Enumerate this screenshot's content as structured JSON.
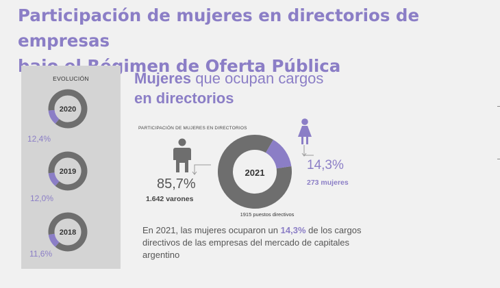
{
  "title": {
    "line1": "Participación de mujeres en directorios de empresas",
    "line2": "bajo el Régimen de Oferta Pública"
  },
  "sidebar": {
    "label": "EVOLUCIÓN",
    "years": [
      {
        "year": "2020",
        "pct_label": "12,4%",
        "value": 12.4
      },
      {
        "year": "2019",
        "pct_label": "12,0%",
        "value": 12.0
      },
      {
        "year": "2018",
        "pct_label": "11,6%",
        "value": 11.6
      }
    ]
  },
  "heading": {
    "bold1": "Mujeres",
    "light": " que ocupan cargos",
    "bold2": "en directorios"
  },
  "caption": "PARTICIPACIÓN DE MUJERES EN DIRECTORIOS",
  "men": {
    "pct": "85,7%",
    "count": "1.642 varones"
  },
  "women": {
    "pct": "14,3%",
    "count": "273 mujeres"
  },
  "main_donut": {
    "year": "2021",
    "caption": "1915 puestos directivos"
  },
  "summary": {
    "pre": "En 2021, las mujeres ocuparon un ",
    "highlight": "14,3%",
    "post": " de los cargos directivos de las empresas del mercado de capitales argentino"
  },
  "colors": {
    "accent": "#8b7ec6",
    "ring": "#6e6e6e",
    "panel": "#d4d4d4",
    "background": "#f1f1f1"
  },
  "icons": [
    "man-icon",
    "woman-icon",
    "arrow-icon"
  ],
  "chart_data": [
    {
      "type": "pie",
      "title": "Mujeres que ocupan cargos en directorios",
      "center_label": "2021",
      "categories": [
        "mujeres",
        "varones"
      ],
      "values": [
        14.3,
        85.7
      ],
      "counts": [
        273,
        1642
      ],
      "total": 1915
    },
    {
      "type": "pie",
      "title": "EVOLUCIÓN",
      "series": [
        {
          "name": "2020",
          "values": [
            12.4,
            87.6
          ]
        },
        {
          "name": "2019",
          "values": [
            12.0,
            88.0
          ]
        },
        {
          "name": "2018",
          "values": [
            11.6,
            88.4
          ]
        }
      ],
      "categories": [
        "mujeres",
        "varones"
      ]
    }
  ]
}
